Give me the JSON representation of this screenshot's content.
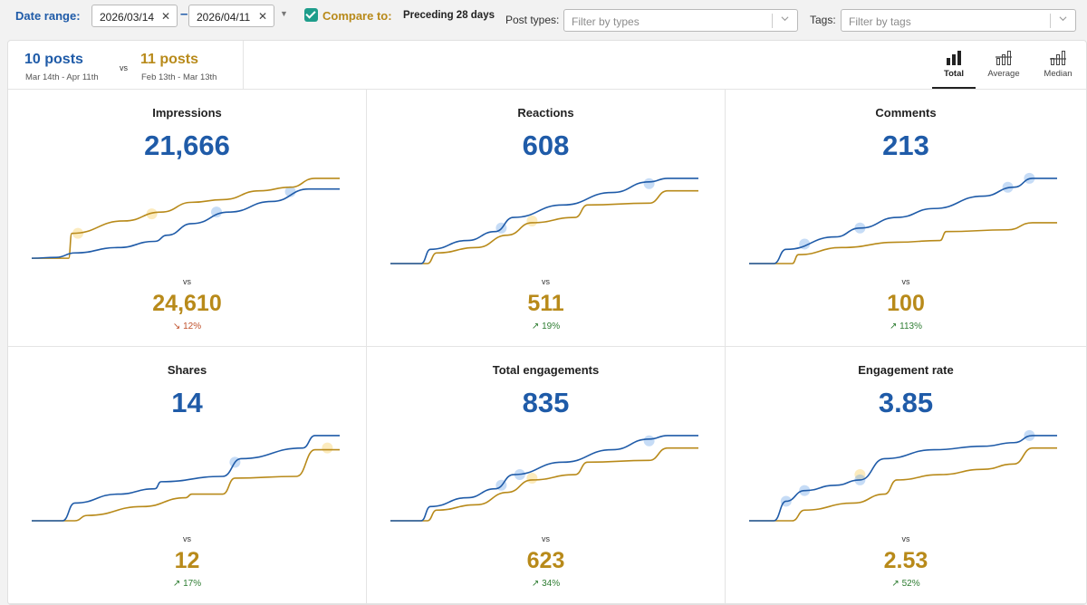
{
  "filters": {
    "date_range_label": "Date range:",
    "start_date": "2026/03/14",
    "end_date": "2026/04/11",
    "compare_checked": true,
    "compare_label": "Compare to:",
    "compare_value": "Preceding 28 days",
    "post_types_label": "Post types:",
    "post_types_placeholder": "Filter by types",
    "tags_label": "Tags:",
    "tags_placeholder": "Filter by tags"
  },
  "summary": {
    "current_count": "10 posts",
    "current_range": "Mar 14th - Apr 11th",
    "vs": "vs",
    "previous_count": "11 posts",
    "previous_range": "Feb 13th - Mar 13th"
  },
  "aggregation_tabs": [
    {
      "label": "Total",
      "icon": "bar-chart-icon",
      "active": true
    },
    {
      "label": "Average",
      "icon": "bar-chart-avg-icon",
      "active": false
    },
    {
      "label": "Median",
      "icon": "bar-chart-median-icon",
      "active": false
    }
  ],
  "colors": {
    "current": "#1f5ba8",
    "previous": "#b88a1a",
    "up": "#2e7d32",
    "down": "#c0502a"
  },
  "metrics": [
    {
      "title": "Impressions",
      "value": "21,666",
      "vs": "vs",
      "previous": "24,610",
      "change": "12%",
      "direction": "down",
      "current_curve": [
        [
          0,
          0.06
        ],
        [
          0.08,
          0.07
        ],
        [
          0.14,
          0.12
        ],
        [
          0.28,
          0.18
        ],
        [
          0.4,
          0.25
        ],
        [
          0.44,
          0.32
        ],
        [
          0.52,
          0.45
        ],
        [
          0.64,
          0.58
        ],
        [
          0.78,
          0.7
        ],
        [
          0.9,
          0.84
        ],
        [
          1,
          0.84
        ]
      ],
      "previous_curve": [
        [
          0,
          0.06
        ],
        [
          0.12,
          0.06
        ],
        [
          0.13,
          0.34
        ],
        [
          0.3,
          0.48
        ],
        [
          0.42,
          0.58
        ],
        [
          0.52,
          0.69
        ],
        [
          0.62,
          0.72
        ],
        [
          0.74,
          0.82
        ],
        [
          0.84,
          0.86
        ],
        [
          0.92,
          0.96
        ],
        [
          1,
          0.96
        ]
      ],
      "current_markers": [
        [
          0.6,
          0.58
        ],
        [
          0.84,
          0.81
        ]
      ],
      "previous_markers": [
        [
          0.15,
          0.34
        ],
        [
          0.39,
          0.56
        ]
      ]
    },
    {
      "title": "Reactions",
      "value": "608",
      "vs": "vs",
      "previous": "511",
      "change": "19%",
      "direction": "up",
      "current_curve": [
        [
          0,
          0.0
        ],
        [
          0.1,
          0.0
        ],
        [
          0.13,
          0.16
        ],
        [
          0.25,
          0.26
        ],
        [
          0.34,
          0.36
        ],
        [
          0.4,
          0.52
        ],
        [
          0.56,
          0.66
        ],
        [
          0.72,
          0.8
        ],
        [
          0.84,
          0.92
        ],
        [
          0.9,
          0.96
        ],
        [
          1,
          0.96
        ]
      ],
      "previous_curve": [
        [
          0,
          0.0
        ],
        [
          0.12,
          0.0
        ],
        [
          0.15,
          0.12
        ],
        [
          0.28,
          0.18
        ],
        [
          0.38,
          0.32
        ],
        [
          0.46,
          0.46
        ],
        [
          0.6,
          0.52
        ],
        [
          0.64,
          0.66
        ],
        [
          0.84,
          0.68
        ],
        [
          0.9,
          0.82
        ],
        [
          1,
          0.82
        ]
      ],
      "current_markers": [
        [
          0.36,
          0.4
        ],
        [
          0.84,
          0.9
        ]
      ],
      "previous_markers": [
        [
          0.46,
          0.48
        ]
      ]
    },
    {
      "title": "Comments",
      "value": "213",
      "vs": "vs",
      "previous": "100",
      "change": "113%",
      "direction": "up",
      "current_curve": [
        [
          0,
          0.0
        ],
        [
          0.08,
          0.0
        ],
        [
          0.12,
          0.16
        ],
        [
          0.28,
          0.3
        ],
        [
          0.36,
          0.4
        ],
        [
          0.48,
          0.52
        ],
        [
          0.6,
          0.62
        ],
        [
          0.76,
          0.76
        ],
        [
          0.86,
          0.86
        ],
        [
          0.92,
          0.96
        ],
        [
          1,
          0.96
        ]
      ],
      "previous_curve": [
        [
          0,
          0.0
        ],
        [
          0.14,
          0.0
        ],
        [
          0.16,
          0.1
        ],
        [
          0.3,
          0.18
        ],
        [
          0.48,
          0.24
        ],
        [
          0.62,
          0.26
        ],
        [
          0.64,
          0.36
        ],
        [
          0.84,
          0.38
        ],
        [
          0.92,
          0.46
        ],
        [
          1,
          0.46
        ]
      ],
      "current_markers": [
        [
          0.18,
          0.22
        ],
        [
          0.36,
          0.4
        ],
        [
          0.84,
          0.86
        ],
        [
          0.91,
          0.96
        ]
      ],
      "previous_markers": []
    },
    {
      "title": "Shares",
      "value": "14",
      "vs": "vs",
      "previous": "12",
      "change": "17%",
      "direction": "up",
      "current_curve": [
        [
          0,
          0.0
        ],
        [
          0.1,
          0.0
        ],
        [
          0.14,
          0.2
        ],
        [
          0.28,
          0.3
        ],
        [
          0.4,
          0.36
        ],
        [
          0.42,
          0.44
        ],
        [
          0.62,
          0.5
        ],
        [
          0.68,
          0.7
        ],
        [
          0.88,
          0.82
        ],
        [
          0.92,
          0.96
        ],
        [
          1,
          0.96
        ]
      ],
      "previous_curve": [
        [
          0,
          0.0
        ],
        [
          0.14,
          0.0
        ],
        [
          0.18,
          0.06
        ],
        [
          0.36,
          0.16
        ],
        [
          0.5,
          0.26
        ],
        [
          0.52,
          0.3
        ],
        [
          0.62,
          0.3
        ],
        [
          0.66,
          0.48
        ],
        [
          0.86,
          0.5
        ],
        [
          0.92,
          0.8
        ],
        [
          1,
          0.8
        ]
      ],
      "current_markers": [
        [
          0.66,
          0.66
        ]
      ],
      "previous_markers": [
        [
          0.96,
          0.82
        ]
      ]
    },
    {
      "title": "Total engagements",
      "value": "835",
      "vs": "vs",
      "previous": "623",
      "change": "34%",
      "direction": "up",
      "current_curve": [
        [
          0,
          0.0
        ],
        [
          0.1,
          0.0
        ],
        [
          0.13,
          0.16
        ],
        [
          0.25,
          0.26
        ],
        [
          0.34,
          0.36
        ],
        [
          0.4,
          0.52
        ],
        [
          0.56,
          0.66
        ],
        [
          0.72,
          0.8
        ],
        [
          0.84,
          0.92
        ],
        [
          0.9,
          0.96
        ],
        [
          1,
          0.96
        ]
      ],
      "previous_curve": [
        [
          0,
          0.0
        ],
        [
          0.12,
          0.0
        ],
        [
          0.15,
          0.12
        ],
        [
          0.28,
          0.18
        ],
        [
          0.38,
          0.32
        ],
        [
          0.46,
          0.46
        ],
        [
          0.6,
          0.52
        ],
        [
          0.64,
          0.66
        ],
        [
          0.84,
          0.68
        ],
        [
          0.9,
          0.82
        ],
        [
          1,
          0.82
        ]
      ],
      "current_markers": [
        [
          0.36,
          0.4
        ],
        [
          0.42,
          0.52
        ],
        [
          0.84,
          0.9
        ]
      ],
      "previous_markers": [
        [
          0.46,
          0.48
        ]
      ]
    },
    {
      "title": "Engagement rate",
      "value": "3.85",
      "vs": "vs",
      "previous": "2.53",
      "change": "52%",
      "direction": "up",
      "current_curve": [
        [
          0,
          0.0
        ],
        [
          0.08,
          0.0
        ],
        [
          0.12,
          0.22
        ],
        [
          0.18,
          0.34
        ],
        [
          0.28,
          0.4
        ],
        [
          0.36,
          0.46
        ],
        [
          0.44,
          0.7
        ],
        [
          0.6,
          0.8
        ],
        [
          0.76,
          0.84
        ],
        [
          0.86,
          0.88
        ],
        [
          0.92,
          0.96
        ],
        [
          1,
          0.96
        ]
      ],
      "previous_curve": [
        [
          0,
          0.0
        ],
        [
          0.14,
          0.0
        ],
        [
          0.18,
          0.12
        ],
        [
          0.34,
          0.2
        ],
        [
          0.44,
          0.3
        ],
        [
          0.48,
          0.46
        ],
        [
          0.62,
          0.52
        ],
        [
          0.76,
          0.58
        ],
        [
          0.86,
          0.64
        ],
        [
          0.92,
          0.82
        ],
        [
          1,
          0.82
        ]
      ],
      "current_markers": [
        [
          0.12,
          0.22
        ],
        [
          0.18,
          0.34
        ],
        [
          0.36,
          0.46
        ],
        [
          0.91,
          0.96
        ]
      ],
      "previous_markers": [
        [
          0.36,
          0.52
        ]
      ]
    }
  ]
}
